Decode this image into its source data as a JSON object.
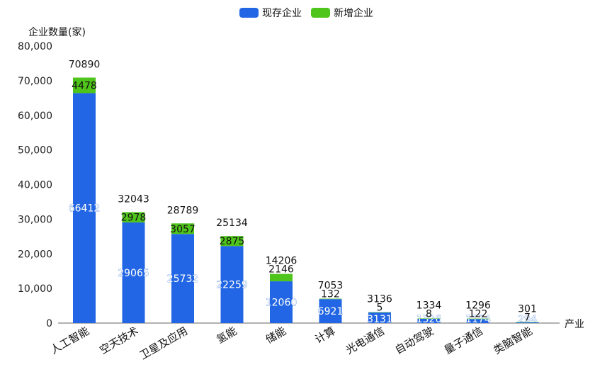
{
  "chart_data": {
    "type": "bar",
    "stacked": true,
    "ylabel": "企业数量(家)",
    "xlabel": "产业",
    "ylim": [
      0,
      80000
    ],
    "yticks": [
      "0",
      "10,000",
      "20,000",
      "30,000",
      "40,000",
      "50,000",
      "60,000",
      "70,000",
      "80,000"
    ],
    "legend_position": "top-center",
    "categories": [
      "人工智能",
      "空天技术",
      "卫星及应用",
      "氢能",
      "储能",
      "计算",
      "光电通信",
      "自动驾驶",
      "量子通信",
      "类脑智能"
    ],
    "series": [
      {
        "name": "现存企业",
        "color": "#2266e6",
        "values": [
          66412,
          29065,
          25732,
          22259,
          12060,
          6921,
          3131,
          1326,
          1174,
          294
        ]
      },
      {
        "name": "新增企业",
        "color": "#4fc41b",
        "values": [
          4478,
          2978,
          3057,
          2875,
          2146,
          132,
          5,
          8,
          122,
          7
        ]
      }
    ],
    "totals": [
      70890,
      32043,
      28789,
      25134,
      14206,
      7053,
      3136,
      1334,
      1296,
      301
    ]
  }
}
